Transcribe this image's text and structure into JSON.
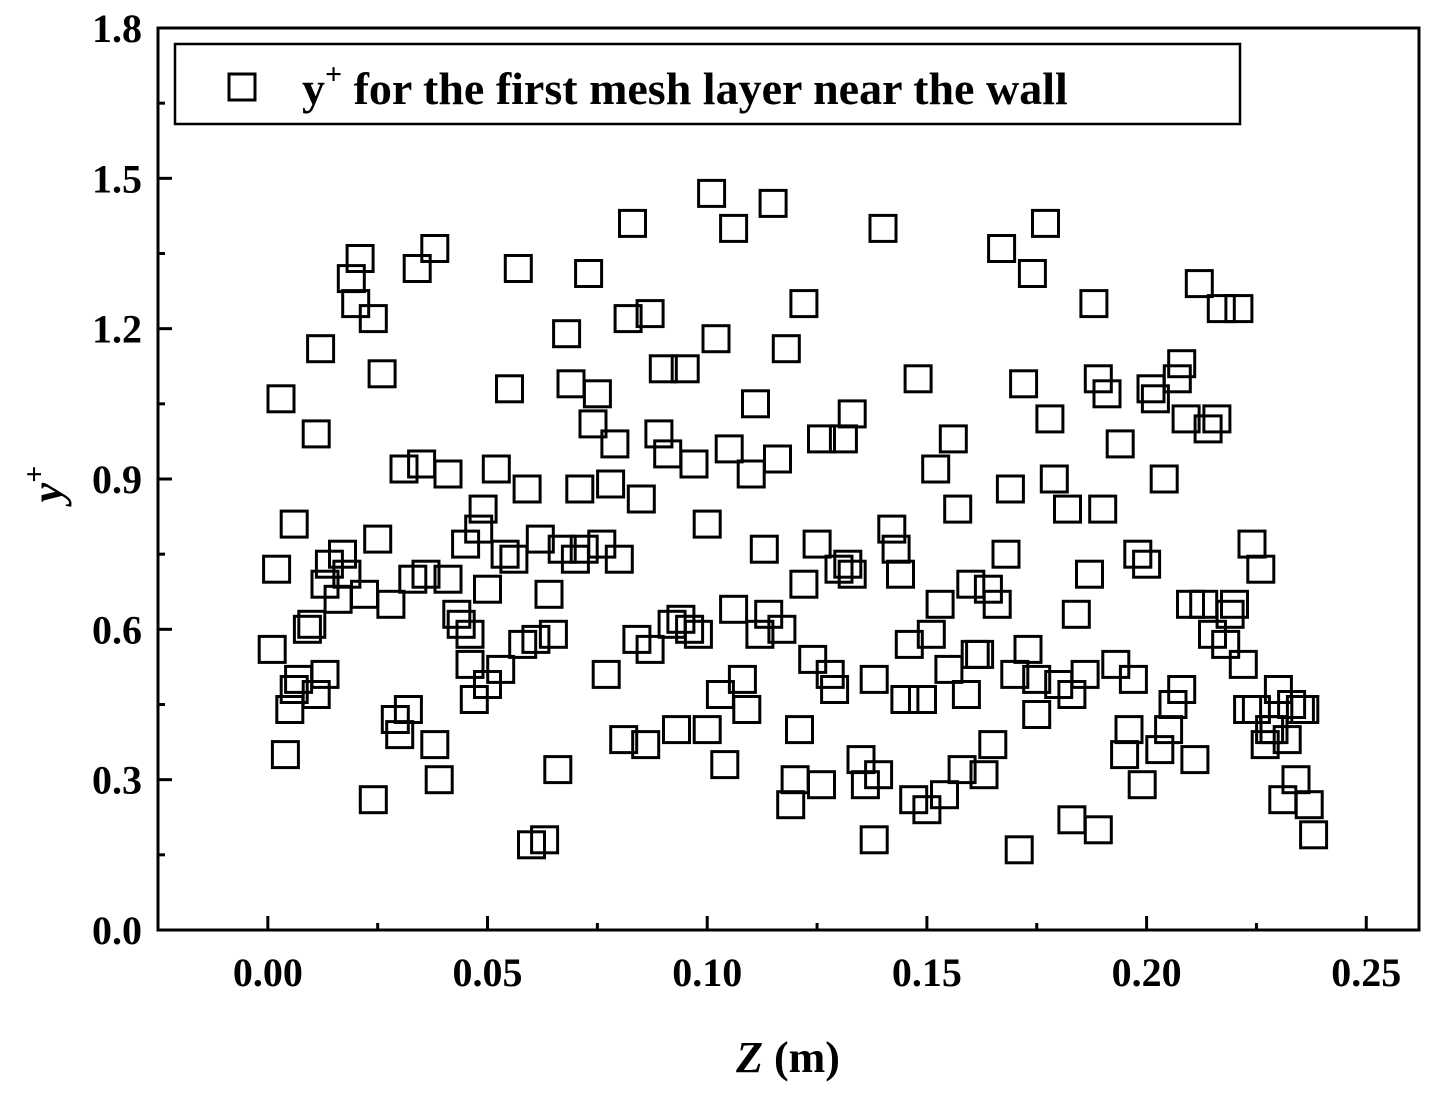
{
  "chart_data": {
    "type": "scatter",
    "xlabel_var": "Z",
    "xlabel_unit": " (m)",
    "ylabel_var": "y",
    "ylabel_sup": "+",
    "xlim": [
      -0.025,
      0.262
    ],
    "ylim": [
      0,
      1.8
    ],
    "xticks": [
      "0.00",
      "0.05",
      "0.10",
      "0.15",
      "0.20",
      "0.25"
    ],
    "xtick_values": [
      0,
      0.05,
      0.1,
      0.15,
      0.2,
      0.25
    ],
    "yticks": [
      "0.0",
      "0.3",
      "0.6",
      "0.9",
      "1.2",
      "1.5",
      "1.8"
    ],
    "ytick_values": [
      0,
      0.3,
      0.6,
      0.9,
      1.2,
      1.5,
      1.8
    ],
    "grid": false,
    "legend_position": "top",
    "series": [
      {
        "legend_prefix": "y",
        "legend_sup": "+",
        "legend_rest": " for the first mesh layer near the wall",
        "marker": "open-square",
        "color": "#000000",
        "points": [
          [
            0.001,
            0.56
          ],
          [
            0.002,
            0.72
          ],
          [
            0.003,
            1.06
          ],
          [
            0.004,
            0.35
          ],
          [
            0.005,
            0.44
          ],
          [
            0.006,
            0.48
          ],
          [
            0.006,
            0.81
          ],
          [
            0.007,
            0.5
          ],
          [
            0.009,
            0.6
          ],
          [
            0.01,
            0.61
          ],
          [
            0.011,
            0.47
          ],
          [
            0.011,
            0.99
          ],
          [
            0.012,
            1.16
          ],
          [
            0.013,
            0.51
          ],
          [
            0.013,
            0.69
          ],
          [
            0.014,
            0.73
          ],
          [
            0.016,
            0.66
          ],
          [
            0.017,
            0.75
          ],
          [
            0.018,
            0.71
          ],
          [
            0.019,
            1.3
          ],
          [
            0.02,
            1.25
          ],
          [
            0.021,
            1.34
          ],
          [
            0.022,
            0.67
          ],
          [
            0.024,
            1.22
          ],
          [
            0.024,
            0.26
          ],
          [
            0.025,
            0.78
          ],
          [
            0.026,
            1.11
          ],
          [
            0.028,
            0.65
          ],
          [
            0.029,
            0.42
          ],
          [
            0.03,
            0.39
          ],
          [
            0.031,
            0.92
          ],
          [
            0.032,
            0.44
          ],
          [
            0.033,
            0.7
          ],
          [
            0.034,
            1.32
          ],
          [
            0.035,
            0.93
          ],
          [
            0.036,
            0.71
          ],
          [
            0.038,
            1.36
          ],
          [
            0.038,
            0.37
          ],
          [
            0.039,
            0.3
          ],
          [
            0.041,
            0.91
          ],
          [
            0.041,
            0.7
          ],
          [
            0.043,
            0.63
          ],
          [
            0.044,
            0.61
          ],
          [
            0.045,
            0.77
          ],
          [
            0.046,
            0.59
          ],
          [
            0.046,
            0.53
          ],
          [
            0.047,
            0.46
          ],
          [
            0.048,
            0.8
          ],
          [
            0.049,
            0.84
          ],
          [
            0.05,
            0.49
          ],
          [
            0.05,
            0.68
          ],
          [
            0.052,
            0.92
          ],
          [
            0.053,
            0.52
          ],
          [
            0.054,
            0.75
          ],
          [
            0.055,
            1.08
          ],
          [
            0.056,
            0.74
          ],
          [
            0.057,
            1.32
          ],
          [
            0.058,
            0.57
          ],
          [
            0.059,
            0.88
          ],
          [
            0.06,
            0.17
          ],
          [
            0.061,
            0.58
          ],
          [
            0.062,
            0.78
          ],
          [
            0.063,
            0.18
          ],
          [
            0.064,
            0.67
          ],
          [
            0.065,
            0.59
          ],
          [
            0.066,
            0.32
          ],
          [
            0.067,
            0.76
          ],
          [
            0.068,
            1.19
          ],
          [
            0.069,
            1.09
          ],
          [
            0.07,
            0.74
          ],
          [
            0.071,
            0.88
          ],
          [
            0.072,
            0.76
          ],
          [
            0.073,
            1.31
          ],
          [
            0.074,
            1.01
          ],
          [
            0.075,
            1.07
          ],
          [
            0.076,
            0.77
          ],
          [
            0.077,
            0.51
          ],
          [
            0.078,
            0.89
          ],
          [
            0.079,
            0.97
          ],
          [
            0.08,
            0.74
          ],
          [
            0.081,
            0.38
          ],
          [
            0.082,
            1.22
          ],
          [
            0.083,
            1.41
          ],
          [
            0.084,
            0.58
          ],
          [
            0.085,
            0.86
          ],
          [
            0.086,
            0.37
          ],
          [
            0.087,
            1.23
          ],
          [
            0.087,
            0.56
          ],
          [
            0.089,
            0.99
          ],
          [
            0.09,
            1.12
          ],
          [
            0.091,
            0.95
          ],
          [
            0.092,
            0.61
          ],
          [
            0.093,
            0.4
          ],
          [
            0.094,
            0.62
          ],
          [
            0.095,
            1.12
          ],
          [
            0.096,
            0.6
          ],
          [
            0.097,
            0.93
          ],
          [
            0.098,
            0.59
          ],
          [
            0.1,
            0.4
          ],
          [
            0.1,
            0.81
          ],
          [
            0.101,
            1.47
          ],
          [
            0.102,
            1.18
          ],
          [
            0.103,
            0.47
          ],
          [
            0.104,
            0.33
          ],
          [
            0.105,
            0.96
          ],
          [
            0.106,
            1.4
          ],
          [
            0.106,
            0.64
          ],
          [
            0.108,
            0.5
          ],
          [
            0.109,
            0.44
          ],
          [
            0.11,
            0.91
          ],
          [
            0.111,
            1.05
          ],
          [
            0.112,
            0.59
          ],
          [
            0.113,
            0.76
          ],
          [
            0.114,
            0.63
          ],
          [
            0.115,
            1.45
          ],
          [
            0.116,
            0.94
          ],
          [
            0.117,
            0.6
          ],
          [
            0.118,
            1.16
          ],
          [
            0.119,
            0.25
          ],
          [
            0.12,
            0.3
          ],
          [
            0.121,
            0.4
          ],
          [
            0.122,
            1.25
          ],
          [
            0.122,
            0.69
          ],
          [
            0.124,
            0.54
          ],
          [
            0.125,
            0.77
          ],
          [
            0.126,
            0.98
          ],
          [
            0.126,
            0.29
          ],
          [
            0.128,
            0.51
          ],
          [
            0.129,
            0.48
          ],
          [
            0.13,
            0.72
          ],
          [
            0.131,
            0.98
          ],
          [
            0.132,
            0.73
          ],
          [
            0.133,
            0.71
          ],
          [
            0.133,
            1.03
          ],
          [
            0.135,
            0.34
          ],
          [
            0.136,
            0.29
          ],
          [
            0.138,
            0.18
          ],
          [
            0.138,
            0.5
          ],
          [
            0.139,
            0.31
          ],
          [
            0.14,
            1.4
          ],
          [
            0.142,
            0.8
          ],
          [
            0.143,
            0.76
          ],
          [
            0.144,
            0.71
          ],
          [
            0.145,
            0.46
          ],
          [
            0.146,
            0.57
          ],
          [
            0.147,
            0.26
          ],
          [
            0.148,
            1.1
          ],
          [
            0.149,
            0.46
          ],
          [
            0.15,
            0.24
          ],
          [
            0.151,
            0.59
          ],
          [
            0.152,
            0.92
          ],
          [
            0.153,
            0.65
          ],
          [
            0.154,
            0.27
          ],
          [
            0.155,
            0.52
          ],
          [
            0.156,
            0.98
          ],
          [
            0.157,
            0.84
          ],
          [
            0.158,
            0.32
          ],
          [
            0.159,
            0.47
          ],
          [
            0.16,
            0.69
          ],
          [
            0.161,
            0.55
          ],
          [
            0.162,
            0.55
          ],
          [
            0.163,
            0.31
          ],
          [
            0.164,
            0.68
          ],
          [
            0.165,
            0.37
          ],
          [
            0.166,
            0.65
          ],
          [
            0.167,
            1.36
          ],
          [
            0.168,
            0.75
          ],
          [
            0.169,
            0.88
          ],
          [
            0.17,
            0.51
          ],
          [
            0.171,
            0.16
          ],
          [
            0.172,
            1.09
          ],
          [
            0.173,
            0.56
          ],
          [
            0.174,
            1.31
          ],
          [
            0.175,
            0.5
          ],
          [
            0.175,
            0.43
          ],
          [
            0.177,
            1.41
          ],
          [
            0.178,
            1.02
          ],
          [
            0.179,
            0.9
          ],
          [
            0.18,
            0.49
          ],
          [
            0.182,
            0.84
          ],
          [
            0.183,
            0.47
          ],
          [
            0.183,
            0.22
          ],
          [
            0.184,
            0.63
          ],
          [
            0.186,
            0.51
          ],
          [
            0.187,
            0.71
          ],
          [
            0.188,
            1.25
          ],
          [
            0.189,
            1.1
          ],
          [
            0.189,
            0.2
          ],
          [
            0.19,
            0.84
          ],
          [
            0.191,
            1.07
          ],
          [
            0.193,
            0.53
          ],
          [
            0.194,
            0.97
          ],
          [
            0.195,
            0.35
          ],
          [
            0.196,
            0.4
          ],
          [
            0.197,
            0.5
          ],
          [
            0.198,
            0.75
          ],
          [
            0.199,
            0.29
          ],
          [
            0.2,
            0.73
          ],
          [
            0.201,
            1.08
          ],
          [
            0.202,
            1.06
          ],
          [
            0.203,
            0.36
          ],
          [
            0.204,
            0.9
          ],
          [
            0.205,
            0.4
          ],
          [
            0.206,
            0.45
          ],
          [
            0.207,
            1.1
          ],
          [
            0.208,
            1.13
          ],
          [
            0.208,
            0.48
          ],
          [
            0.209,
            1.02
          ],
          [
            0.21,
            0.65
          ],
          [
            0.211,
            0.34
          ],
          [
            0.212,
            1.29
          ],
          [
            0.213,
            0.65
          ],
          [
            0.214,
            1.0
          ],
          [
            0.215,
            0.59
          ],
          [
            0.216,
            1.02
          ],
          [
            0.217,
            1.24
          ],
          [
            0.218,
            0.57
          ],
          [
            0.219,
            0.63
          ],
          [
            0.22,
            0.65
          ],
          [
            0.221,
            1.24
          ],
          [
            0.222,
            0.53
          ],
          [
            0.223,
            0.44
          ],
          [
            0.224,
            0.77
          ],
          [
            0.225,
            0.44
          ],
          [
            0.226,
            0.72
          ],
          [
            0.227,
            0.37
          ],
          [
            0.228,
            0.4
          ],
          [
            0.229,
            0.4
          ],
          [
            0.23,
            0.48
          ],
          [
            0.231,
            0.26
          ],
          [
            0.232,
            0.38
          ],
          [
            0.233,
            0.45
          ],
          [
            0.234,
            0.3
          ],
          [
            0.235,
            0.44
          ],
          [
            0.236,
            0.44
          ],
          [
            0.237,
            0.25
          ],
          [
            0.238,
            0.19
          ]
        ]
      }
    ]
  }
}
